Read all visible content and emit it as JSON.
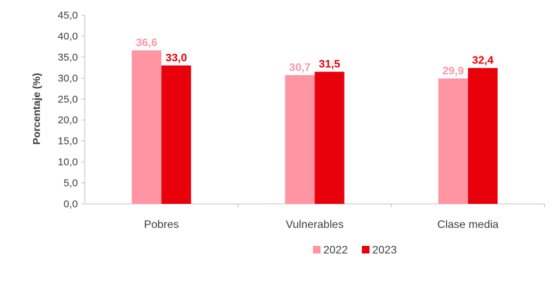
{
  "chart_data": {
    "type": "bar",
    "title": "",
    "xlabel": "",
    "ylabel": "Porcentaje (%)",
    "ylim": [
      0,
      45
    ],
    "y_ticks": [
      "0,0",
      "5,0",
      "10,0",
      "15,0",
      "20,0",
      "25,0",
      "30,0",
      "35,0",
      "40,0",
      "45,0"
    ],
    "categories": [
      "Pobres",
      "Vulnerables",
      "Clase media"
    ],
    "series": [
      {
        "name": "2022",
        "values": [
          36.6,
          30.7,
          29.9
        ],
        "labels": [
          "36,6",
          "30,7",
          "29,9"
        ],
        "color": "#ff95a3"
      },
      {
        "name": "2023",
        "values": [
          33.0,
          31.5,
          32.4
        ],
        "labels": [
          "33,0",
          "31,5",
          "32,4"
        ],
        "color": "#e8000b"
      }
    ],
    "grid": false,
    "legend": "bottom"
  }
}
